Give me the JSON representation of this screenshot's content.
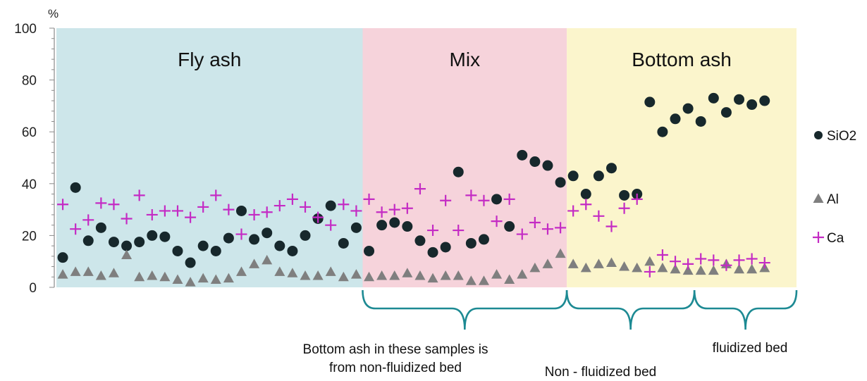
{
  "chart_data": {
    "type": "scatter",
    "y_unit": "%",
    "ylim": [
      0,
      100
    ],
    "y_ticks": [
      0,
      20,
      40,
      60,
      80,
      100
    ],
    "grid": false,
    "legend_position": "right",
    "x_count": 58,
    "regions": [
      {
        "label": "Fly ash",
        "x_start": 0.5,
        "x_end": 24.5,
        "color": "#cde6ea"
      },
      {
        "label": "Mix",
        "x_start": 24.5,
        "x_end": 40.5,
        "color": "#f6d3db"
      },
      {
        "label": "Bottom ash",
        "x_start": 40.5,
        "x_end": 58.5,
        "color": "#fbf5cc"
      }
    ],
    "annotations": [
      {
        "lines": [
          "Bottom ash in these samples is",
          "from non-fluidized bed"
        ],
        "x_start": 24.5,
        "x_end": 40.5
      },
      {
        "lines": [
          "Non - fluidized bed"
        ],
        "x_start": 40.5,
        "x_end": 50.5
      },
      {
        "lines": [
          "fluidized bed"
        ],
        "x_start": 50.5,
        "x_end": 58.5
      }
    ],
    "series": [
      {
        "name": "SiO2",
        "marker": "circle",
        "color": "#17282c",
        "points": [
          [
            1,
            11.5
          ],
          [
            2,
            38.5
          ],
          [
            3,
            18
          ],
          [
            4,
            23
          ],
          [
            5,
            17.5
          ],
          [
            6,
            16
          ],
          [
            7,
            17.5
          ],
          [
            8,
            20
          ],
          [
            9,
            19.5
          ],
          [
            10,
            14
          ],
          [
            11,
            9.5
          ],
          [
            12,
            16
          ],
          [
            13,
            14
          ],
          [
            14,
            19
          ],
          [
            15,
            29.5
          ],
          [
            16,
            18.5
          ],
          [
            17,
            21
          ],
          [
            18,
            16
          ],
          [
            19,
            14
          ],
          [
            20,
            20
          ],
          [
            21,
            26.5
          ],
          [
            22,
            31.5
          ],
          [
            23,
            17
          ],
          [
            24,
            23
          ],
          [
            25,
            14
          ],
          [
            26,
            24
          ],
          [
            27,
            25
          ],
          [
            28,
            23.5
          ],
          [
            29,
            18
          ],
          [
            30,
            13.5
          ],
          [
            31,
            15.5
          ],
          [
            32,
            44.5
          ],
          [
            33,
            17
          ],
          [
            34,
            18.5
          ],
          [
            35,
            34
          ],
          [
            36,
            23.5
          ],
          [
            37,
            51
          ],
          [
            38,
            48.5
          ],
          [
            39,
            47
          ],
          [
            40,
            40.5
          ],
          [
            41,
            43
          ],
          [
            42,
            36
          ],
          [
            43,
            43
          ],
          [
            44,
            46
          ],
          [
            45,
            35.5
          ],
          [
            46,
            36
          ],
          [
            47,
            71.5
          ],
          [
            48,
            60
          ],
          [
            49,
            65
          ],
          [
            50,
            69
          ],
          [
            51,
            64
          ],
          [
            52,
            73
          ],
          [
            53,
            67.5
          ],
          [
            54,
            72.5
          ],
          [
            55,
            70.5
          ],
          [
            56,
            72
          ]
        ]
      },
      {
        "name": "Al",
        "marker": "triangle",
        "color": "#7f7f7f",
        "points": [
          [
            1,
            5
          ],
          [
            2,
            6
          ],
          [
            3,
            6
          ],
          [
            4,
            4.5
          ],
          [
            5,
            5.5
          ],
          [
            6,
            12.5
          ],
          [
            7,
            4
          ],
          [
            8,
            4.5
          ],
          [
            9,
            4
          ],
          [
            10,
            3
          ],
          [
            11,
            2
          ],
          [
            12,
            3.5
          ],
          [
            13,
            3
          ],
          [
            14,
            3.5
          ],
          [
            15,
            6
          ],
          [
            16,
            9
          ],
          [
            17,
            10.5
          ],
          [
            18,
            6
          ],
          [
            19,
            5.5
          ],
          [
            20,
            4.5
          ],
          [
            21,
            4.5
          ],
          [
            22,
            6
          ],
          [
            23,
            4
          ],
          [
            24,
            5
          ],
          [
            25,
            4
          ],
          [
            26,
            4.5
          ],
          [
            27,
            4.5
          ],
          [
            28,
            5.5
          ],
          [
            29,
            4.5
          ],
          [
            30,
            3.5
          ],
          [
            31,
            4.5
          ],
          [
            32,
            4.5
          ],
          [
            33,
            2.5
          ],
          [
            34,
            2.5
          ],
          [
            35,
            5
          ],
          [
            36,
            3
          ],
          [
            37,
            5
          ],
          [
            38,
            7.5
          ],
          [
            39,
            9
          ],
          [
            40,
            13
          ],
          [
            41,
            9
          ],
          [
            42,
            7.5
          ],
          [
            43,
            9
          ],
          [
            44,
            9.5
          ],
          [
            45,
            8
          ],
          [
            46,
            7.5
          ],
          [
            47,
            10
          ],
          [
            48,
            7.5
          ],
          [
            49,
            7
          ],
          [
            50,
            6.5
          ],
          [
            51,
            6.5
          ],
          [
            52,
            6.5
          ],
          [
            53,
            9
          ],
          [
            54,
            7
          ],
          [
            55,
            7
          ],
          [
            56,
            7.5
          ]
        ]
      },
      {
        "name": "Ca",
        "marker": "plus",
        "color": "#c42bc4",
        "points": [
          [
            1,
            32
          ],
          [
            2,
            22.5
          ],
          [
            3,
            26
          ],
          [
            4,
            32.5
          ],
          [
            5,
            32
          ],
          [
            6,
            26.5
          ],
          [
            7,
            35.5
          ],
          [
            8,
            28
          ],
          [
            9,
            29.5
          ],
          [
            10,
            29.5
          ],
          [
            11,
            27
          ],
          [
            12,
            31
          ],
          [
            13,
            35.5
          ],
          [
            14,
            30
          ],
          [
            15,
            20.5
          ],
          [
            16,
            28
          ],
          [
            17,
            29
          ],
          [
            18,
            31.5
          ],
          [
            19,
            34
          ],
          [
            20,
            31
          ],
          [
            21,
            27
          ],
          [
            22,
            24
          ],
          [
            23,
            32
          ],
          [
            24,
            29.5
          ],
          [
            25,
            34
          ],
          [
            26,
            29
          ],
          [
            27,
            30
          ],
          [
            28,
            30.5
          ],
          [
            29,
            38
          ],
          [
            30,
            22
          ],
          [
            31,
            33.5
          ],
          [
            32,
            22
          ],
          [
            33,
            35.5
          ],
          [
            34,
            33.5
          ],
          [
            35,
            25.5
          ],
          [
            36,
            34
          ],
          [
            37,
            20.5
          ],
          [
            38,
            25
          ],
          [
            39,
            22.5
          ],
          [
            40,
            23
          ],
          [
            41,
            29.5
          ],
          [
            42,
            32
          ],
          [
            43,
            27.5
          ],
          [
            44,
            23.5
          ],
          [
            45,
            30.5
          ],
          [
            46,
            34
          ],
          [
            47,
            6
          ],
          [
            48,
            12.5
          ],
          [
            49,
            10
          ],
          [
            50,
            9
          ],
          [
            51,
            11
          ],
          [
            52,
            10.5
          ],
          [
            53,
            8.5
          ],
          [
            54,
            10.5
          ],
          [
            55,
            11
          ],
          [
            56,
            9.5
          ]
        ]
      }
    ]
  }
}
